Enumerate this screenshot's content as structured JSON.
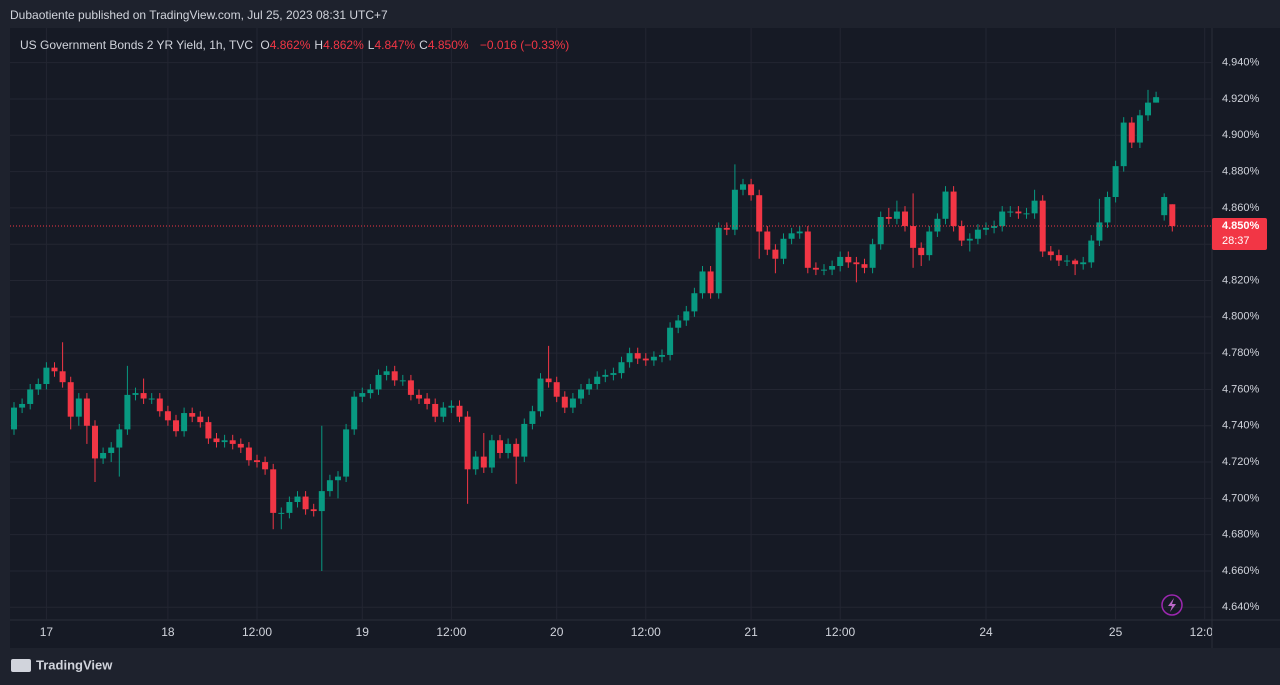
{
  "header": {
    "publisher": "Dubaotiente published on TradingView.com, Jul 25, 2023 08:31 UTC+7",
    "symbol": "US Government Bonds 2 YR Yield, 1h, TVC",
    "ohlc": [
      {
        "key": "O",
        "value": "4.862%"
      },
      {
        "key": "H",
        "value": "4.862%"
      },
      {
        "key": "L",
        "value": "4.847%"
      },
      {
        "key": "C",
        "value": "4.850%"
      }
    ],
    "change": "−0.016 (−0.33%)"
  },
  "footer": {
    "brand": "TradingView"
  },
  "chart_data": {
    "type": "candlestick",
    "up_color": "#089981",
    "down_color": "#f23645",
    "grid": true,
    "ylim": [
      4.633,
      4.958
    ],
    "yticks": [
      {
        "value": 4.64,
        "label": "4.640%"
      },
      {
        "value": 4.66,
        "label": "4.660%"
      },
      {
        "value": 4.68,
        "label": "4.680%"
      },
      {
        "value": 4.7,
        "label": "4.700%"
      },
      {
        "value": 4.72,
        "label": "4.720%"
      },
      {
        "value": 4.74,
        "label": "4.740%"
      },
      {
        "value": 4.76,
        "label": "4.760%"
      },
      {
        "value": 4.78,
        "label": "4.780%"
      },
      {
        "value": 4.8,
        "label": "4.800%"
      },
      {
        "value": 4.82,
        "label": "4.820%"
      },
      {
        "value": 4.84,
        "label": "4.840%"
      },
      {
        "value": 4.86,
        "label": "4.860%"
      },
      {
        "value": 4.88,
        "label": "4.880%"
      },
      {
        "value": 4.9,
        "label": "4.900%"
      },
      {
        "value": 4.92,
        "label": "4.920%"
      },
      {
        "value": 4.94,
        "label": "4.940%"
      }
    ],
    "last_price": {
      "value": 4.85,
      "label": "4.850%",
      "countdown": "28:37"
    },
    "categories": [
      null,
      null,
      null,
      null,
      "17",
      null,
      null,
      null,
      null,
      null,
      null,
      null,
      null,
      null,
      null,
      null,
      null,
      null,
      null,
      "18",
      null,
      null,
      null,
      null,
      null,
      null,
      null,
      null,
      null,
      null,
      "12:00",
      null,
      null,
      null,
      null,
      null,
      null,
      null,
      null,
      null,
      null,
      null,
      null,
      "19",
      null,
      null,
      null,
      null,
      null,
      null,
      null,
      null,
      null,
      null,
      "12:00",
      null,
      null,
      null,
      null,
      null,
      null,
      null,
      null,
      null,
      null,
      null,
      null,
      "20",
      null,
      null,
      null,
      null,
      null,
      null,
      null,
      null,
      null,
      null,
      "12:00",
      null,
      null,
      null,
      null,
      null,
      null,
      null,
      null,
      null,
      null,
      null,
      null,
      "21",
      null,
      null,
      null,
      null,
      null,
      null,
      null,
      null,
      null,
      null,
      "12:00",
      null,
      null,
      null,
      null,
      null,
      null,
      null,
      null,
      null,
      null,
      null,
      null,
      null,
      null,
      null,
      null,
      null,
      "24",
      null,
      null,
      null,
      null,
      null,
      null,
      null,
      null,
      null,
      null,
      null,
      null,
      null,
      null,
      null,
      "25",
      null,
      null,
      null,
      null,
      null,
      null,
      null,
      null,
      null,
      null,
      "12:00"
    ],
    "open": [
      4.738,
      4.75,
      4.752,
      4.76,
      4.763,
      4.772,
      4.77,
      4.764,
      4.745,
      4.755,
      4.74,
      4.722,
      4.725,
      4.728,
      4.738,
      4.757,
      4.758,
      4.755,
      4.755,
      4.748,
      4.743,
      4.737,
      4.747,
      4.745,
      4.742,
      4.733,
      4.731,
      4.732,
      4.73,
      4.728,
      4.721,
      4.72,
      4.716,
      4.692,
      4.692,
      4.698,
      4.701,
      4.694,
      4.693,
      4.704,
      4.71,
      4.712,
      4.738,
      4.756,
      4.758,
      4.76,
      4.768,
      4.77,
      4.765,
      4.765,
      4.757,
      4.755,
      4.752,
      4.745,
      4.75,
      4.751,
      4.745,
      4.716,
      4.723,
      4.717,
      4.732,
      4.725,
      4.73,
      4.723,
      4.741,
      4.748,
      4.766,
      4.764,
      4.756,
      4.75,
      4.755,
      4.76,
      4.763,
      4.767,
      4.768,
      4.769,
      4.775,
      4.78,
      4.777,
      4.776,
      4.778,
      4.779,
      4.794,
      4.798,
      4.803,
      4.813,
      4.825,
      4.813,
      4.849,
      4.848,
      4.87,
      4.873,
      4.867,
      4.847,
      4.837,
      4.832,
      4.843,
      4.846,
      4.847,
      4.827,
      4.826,
      4.826,
      4.828,
      4.833,
      4.83,
      4.829,
      4.827,
      4.84,
      4.855,
      4.854,
      4.858,
      4.85,
      4.838,
      4.834,
      4.847,
      4.854,
      4.869,
      4.85,
      4.842,
      4.843,
      4.848,
      4.849,
      4.85,
      4.858,
      4.858,
      4.857,
      4.857,
      4.864,
      4.836,
      4.834,
      4.831,
      4.831,
      4.829,
      4.83,
      4.842,
      4.852,
      4.866,
      4.883,
      4.907,
      4.896,
      4.911,
      4.918,
      4.856,
      4.862,
      null,
      null,
      null,
      null
    ],
    "high": [
      4.753,
      4.755,
      4.763,
      4.766,
      4.775,
      4.775,
      4.786,
      4.767,
      4.758,
      4.758,
      4.743,
      4.728,
      4.731,
      4.741,
      4.773,
      4.761,
      4.766,
      4.758,
      4.758,
      4.751,
      4.746,
      4.75,
      4.75,
      4.748,
      4.745,
      4.736,
      4.735,
      4.735,
      4.733,
      4.731,
      4.724,
      4.723,
      4.719,
      4.695,
      4.701,
      4.704,
      4.704,
      4.697,
      4.74,
      4.713,
      4.715,
      4.741,
      4.759,
      4.761,
      4.763,
      4.771,
      4.773,
      4.773,
      4.768,
      4.768,
      4.76,
      4.758,
      4.755,
      4.753,
      4.754,
      4.754,
      4.748,
      4.726,
      4.736,
      4.735,
      4.735,
      4.733,
      4.733,
      4.744,
      4.751,
      4.769,
      4.784,
      4.767,
      4.759,
      4.758,
      4.763,
      4.766,
      4.77,
      4.771,
      4.772,
      4.778,
      4.783,
      4.783,
      4.78,
      4.781,
      4.782,
      4.797,
      4.801,
      4.806,
      4.816,
      4.828,
      4.828,
      4.852,
      4.852,
      4.884,
      4.876,
      4.876,
      4.87,
      4.85,
      4.84,
      4.846,
      4.849,
      4.85,
      4.85,
      4.83,
      4.829,
      4.831,
      4.836,
      4.836,
      4.833,
      4.832,
      4.843,
      4.858,
      4.86,
      4.864,
      4.861,
      4.868,
      4.841,
      4.85,
      4.857,
      4.872,
      4.872,
      4.853,
      4.846,
      4.851,
      4.852,
      4.853,
      4.861,
      4.861,
      4.861,
      4.86,
      4.87,
      4.867,
      4.839,
      4.837,
      4.834,
      4.832,
      4.833,
      4.845,
      4.865,
      4.869,
      4.886,
      4.91,
      4.91,
      4.914,
      4.925,
      4.924,
      4.868,
      4.862,
      null,
      null,
      null,
      null
    ],
    "low": [
      4.735,
      4.747,
      4.749,
      4.757,
      4.76,
      4.767,
      4.761,
      4.738,
      4.74,
      4.73,
      4.709,
      4.719,
      4.72,
      4.712,
      4.735,
      4.754,
      4.752,
      4.752,
      4.745,
      4.74,
      4.734,
      4.734,
      4.742,
      4.739,
      4.73,
      4.728,
      4.728,
      4.727,
      4.725,
      4.718,
      4.717,
      4.713,
      4.683,
      4.683,
      4.689,
      4.695,
      4.691,
      4.69,
      4.66,
      4.701,
      4.7,
      4.709,
      4.735,
      4.753,
      4.755,
      4.757,
      4.765,
      4.762,
      4.762,
      4.754,
      4.752,
      4.749,
      4.742,
      4.742,
      4.747,
      4.742,
      4.697,
      4.713,
      4.714,
      4.714,
      4.722,
      4.722,
      4.708,
      4.72,
      4.738,
      4.745,
      4.761,
      4.753,
      4.747,
      4.747,
      4.752,
      4.757,
      4.76,
      4.764,
      4.765,
      4.766,
      4.772,
      4.774,
      4.773,
      4.773,
      4.775,
      4.776,
      4.791,
      4.795,
      4.8,
      4.81,
      4.81,
      4.81,
      4.845,
      4.845,
      4.867,
      4.864,
      4.832,
      4.834,
      4.824,
      4.829,
      4.84,
      4.843,
      4.824,
      4.823,
      4.823,
      4.823,
      4.825,
      4.827,
      4.819,
      4.824,
      4.824,
      4.837,
      4.851,
      4.851,
      4.847,
      4.827,
      4.828,
      4.831,
      4.844,
      4.851,
      4.847,
      4.839,
      4.836,
      4.84,
      4.845,
      4.846,
      4.847,
      4.855,
      4.854,
      4.854,
      4.854,
      4.833,
      4.831,
      4.828,
      4.828,
      4.823,
      4.826,
      4.827,
      4.839,
      4.849,
      4.863,
      4.88,
      4.893,
      4.893,
      4.908,
      4.918,
      4.853,
      4.847,
      null,
      null,
      null,
      null
    ],
    "close": [
      4.75,
      4.752,
      4.76,
      4.763,
      4.772,
      4.77,
      4.764,
      4.745,
      4.755,
      4.74,
      4.722,
      4.725,
      4.728,
      4.738,
      4.757,
      4.758,
      4.755,
      4.755,
      4.748,
      4.743,
      4.737,
      4.747,
      4.745,
      4.742,
      4.733,
      4.731,
      4.732,
      4.73,
      4.728,
      4.721,
      4.72,
      4.716,
      4.692,
      4.692,
      4.698,
      4.701,
      4.694,
      4.693,
      4.704,
      4.71,
      4.712,
      4.738,
      4.756,
      4.758,
      4.76,
      4.768,
      4.77,
      4.765,
      4.765,
      4.757,
      4.755,
      4.752,
      4.745,
      4.75,
      4.751,
      4.745,
      4.716,
      4.723,
      4.717,
      4.732,
      4.725,
      4.73,
      4.723,
      4.741,
      4.748,
      4.766,
      4.764,
      4.756,
      4.75,
      4.755,
      4.76,
      4.763,
      4.767,
      4.768,
      4.769,
      4.775,
      4.78,
      4.777,
      4.776,
      4.778,
      4.779,
      4.794,
      4.798,
      4.803,
      4.813,
      4.825,
      4.813,
      4.849,
      4.848,
      4.87,
      4.873,
      4.867,
      4.847,
      4.837,
      4.832,
      4.843,
      4.846,
      4.847,
      4.827,
      4.826,
      4.826,
      4.828,
      4.833,
      4.83,
      4.829,
      4.827,
      4.84,
      4.855,
      4.854,
      4.858,
      4.85,
      4.838,
      4.834,
      4.847,
      4.854,
      4.869,
      4.85,
      4.842,
      4.843,
      4.848,
      4.849,
      4.85,
      4.858,
      4.858,
      4.857,
      4.857,
      4.864,
      4.836,
      4.834,
      4.831,
      4.831,
      4.829,
      4.83,
      4.842,
      4.852,
      4.866,
      4.883,
      4.907,
      4.896,
      4.911,
      4.918,
      4.921,
      4.866,
      4.85,
      null,
      null,
      null,
      null
    ]
  }
}
